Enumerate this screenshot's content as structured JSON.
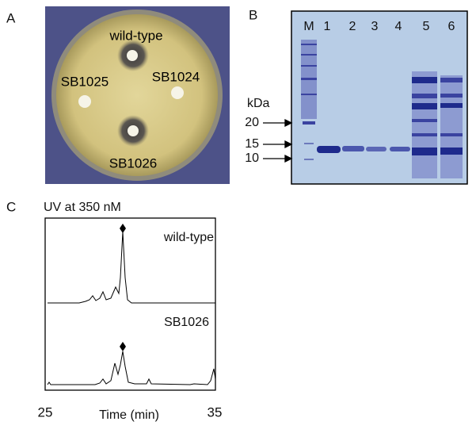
{
  "panels": [
    {
      "label": "A",
      "strains": [
        "wild-type",
        "SB1025",
        "SB1024",
        "SB1026"
      ]
    },
    {
      "label": "B",
      "lanes": [
        "M",
        "1",
        "2",
        "3",
        "4",
        "5",
        "6"
      ],
      "unit": "kDa",
      "markers": [
        20,
        15,
        10
      ]
    },
    {
      "label": "C",
      "title": "UV at 350 nM",
      "traces": [
        "wild-type",
        "SB1026"
      ],
      "x_axis": {
        "title": "Time (min)",
        "ticks": [
          25,
          35
        ]
      }
    }
  ]
}
